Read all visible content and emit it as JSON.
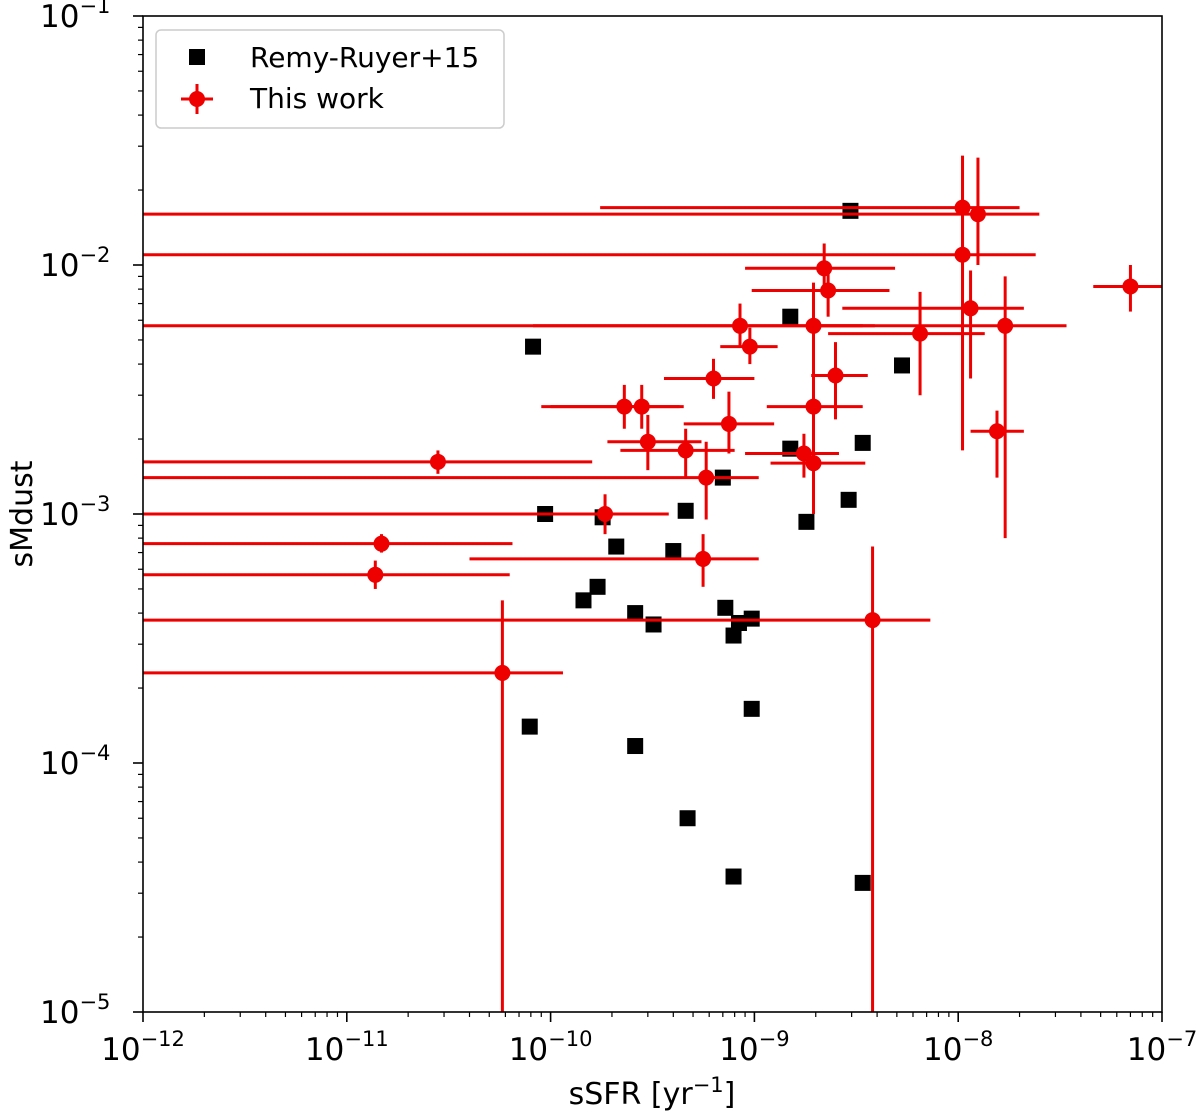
{
  "chart_data": {
    "type": "scatter",
    "xlabel": "sSFR [yr",
    "xlabel_sup": "−1",
    "xlabel_end": "]",
    "ylabel": "sMdust",
    "x_scale": "log",
    "y_scale": "log",
    "xlim": [
      1e-12,
      1e-07
    ],
    "ylim": [
      1e-05,
      0.1
    ],
    "x_ticks": [
      {
        "value": 1e-12,
        "base": "10",
        "exp": "−12"
      },
      {
        "value": 1e-11,
        "base": "10",
        "exp": "−11"
      },
      {
        "value": 1e-10,
        "base": "10",
        "exp": "−10"
      },
      {
        "value": 1e-09,
        "base": "10",
        "exp": "−9"
      },
      {
        "value": 1e-08,
        "base": "10",
        "exp": "−8"
      },
      {
        "value": 1e-07,
        "base": "10",
        "exp": "−7"
      }
    ],
    "y_ticks": [
      {
        "value": 1e-05,
        "base": "10",
        "exp": "−5"
      },
      {
        "value": 0.0001,
        "base": "10",
        "exp": "−4"
      },
      {
        "value": 0.001,
        "base": "10",
        "exp": "−3"
      },
      {
        "value": 0.01,
        "base": "10",
        "exp": "−2"
      },
      {
        "value": 0.1,
        "base": "10",
        "exp": "−1"
      }
    ],
    "grid": false,
    "legend_position": "top-left",
    "series": [
      {
        "name": "Remy-Ruyer+15",
        "marker": "square",
        "color": "#000000",
        "points": [
          [
            2.96e-09,
            0.0165
          ],
          [
            1.5e-09,
            0.0062
          ],
          [
            8.2e-11,
            0.0047
          ],
          [
            5.3e-09,
            0.00395
          ],
          [
            3.4e-09,
            0.00193
          ],
          [
            1.5e-09,
            0.00183
          ],
          [
            7e-10,
            0.0014
          ],
          [
            2.9e-09,
            0.00114
          ],
          [
            9.4e-11,
            0.001
          ],
          [
            1.8e-10,
            0.00097
          ],
          [
            4.6e-10,
            0.00103
          ],
          [
            1.8e-09,
            0.00093
          ],
          [
            2.1e-10,
            0.00074
          ],
          [
            4e-10,
            0.00071
          ],
          [
            1.7e-10,
            0.00051
          ],
          [
            1.45e-10,
            0.00045
          ],
          [
            2.6e-10,
            0.0004
          ],
          [
            7.2e-10,
            0.00042
          ],
          [
            3.2e-10,
            0.00036
          ],
          [
            8.4e-10,
            0.000365
          ],
          [
            9.7e-10,
            0.00038
          ],
          [
            7.9e-10,
            0.000325
          ],
          [
            9.7e-10,
            0.000165
          ],
          [
            7.9e-11,
            0.00014
          ],
          [
            2.6e-10,
            0.000117
          ],
          [
            4.7e-10,
            6e-05
          ],
          [
            7.9e-10,
            3.5e-05
          ],
          [
            3.4e-09,
            3.3e-05
          ]
        ]
      },
      {
        "name": "This work",
        "marker": "circle",
        "color": "#ee0000",
        "points": [
          {
            "x": 1.05e-08,
            "y": 0.017,
            "xerr": [
              1.75e-10,
              2e-08
            ],
            "yerr": [
              0.01,
              0.0275
            ]
          },
          {
            "x": 1.25e-08,
            "y": 0.016,
            "xerr": [
              1e-12,
              2.5e-08
            ],
            "yerr": [
              0.01,
              0.027
            ]
          },
          {
            "x": 1.05e-08,
            "y": 0.011,
            "xerr": [
              1e-12,
              2.4e-08
            ],
            "yerr": [
              0.0018,
              0.02
            ]
          },
          {
            "x": 2.2e-09,
            "y": 0.0097,
            "xerr": [
              9e-10,
              4.9e-09
            ],
            "yerr": [
              0.0075,
              0.0122
            ]
          },
          {
            "x": 2.3e-09,
            "y": 0.0079,
            "xerr": [
              9.7e-10,
              4.6e-09
            ],
            "yerr": [
              0.0062,
              0.0097
            ]
          },
          {
            "x": 7e-08,
            "y": 0.0082,
            "xerr": [
              4.6e-08,
              1.05e-07
            ],
            "yerr": [
              0.0065,
              0.01
            ]
          },
          {
            "x": 1.15e-08,
            "y": 0.0067,
            "xerr": [
              2.7e-09,
              2.1e-08
            ],
            "yerr": [
              0.0035,
              0.0095
            ]
          },
          {
            "x": 8.5e-10,
            "y": 0.0057,
            "xerr": [
              1e-12,
              3.9e-09
            ],
            "yerr": [
              0.0047,
              0.007
            ]
          },
          {
            "x": 1.95e-09,
            "y": 0.0057,
            "xerr": [
              8.2e-11,
              3.4e-09
            ],
            "yerr": [
              0.002,
              0.0085
            ]
          },
          {
            "x": 1.7e-08,
            "y": 0.0057,
            "xerr": [
              2e-09,
              3.4e-08
            ],
            "yerr": [
              0.0008,
              0.009
            ]
          },
          {
            "x": 6.5e-09,
            "y": 0.0053,
            "xerr": [
              2.3e-09,
              1.35e-08
            ],
            "yerr": [
              0.003,
              0.0078
            ]
          },
          {
            "x": 9.5e-10,
            "y": 0.0047,
            "xerr": [
              6.8e-10,
              1.3e-09
            ],
            "yerr": [
              0.004,
              0.0056
            ]
          },
          {
            "x": 6.3e-10,
            "y": 0.0035,
            "xerr": [
              3.6e-10,
              1e-09
            ],
            "yerr": [
              0.0029,
              0.0042
            ]
          },
          {
            "x": 2.5e-09,
            "y": 0.0036,
            "xerr": [
              1.9e-09,
              3.6e-09
            ],
            "yerr": [
              0.0024,
              0.0049
            ]
          },
          {
            "x": 2.3e-10,
            "y": 0.0027,
            "xerr": [
              9e-11,
              4.5e-10
            ],
            "yerr": [
              0.0022,
              0.0033
            ]
          },
          {
            "x": 2.8e-10,
            "y": 0.0027,
            "xerr": [
              1e-10,
              4.3e-10
            ],
            "yerr": [
              0.0022,
              0.0033
            ]
          },
          {
            "x": 1.95e-09,
            "y": 0.0027,
            "xerr": [
              1.15e-09,
              3.4e-09
            ],
            "yerr": [
              0.002,
              0.0035
            ]
          },
          {
            "x": 7.5e-10,
            "y": 0.0023,
            "xerr": [
              4.5e-10,
              1.25e-09
            ],
            "yerr": [
              0.00175,
              0.0031
            ]
          },
          {
            "x": 1.55e-08,
            "y": 0.00215,
            "xerr": [
              1.15e-08,
              2.1e-08
            ],
            "yerr": [
              0.0014,
              0.0026
            ]
          },
          {
            "x": 3e-10,
            "y": 0.00195,
            "xerr": [
              1.9e-10,
              5.5e-10
            ],
            "yerr": [
              0.0015,
              0.0025
            ]
          },
          {
            "x": 4.6e-10,
            "y": 0.0018,
            "xerr": [
              2.2e-10,
              8e-10
            ],
            "yerr": [
              0.0014,
              0.0022
            ]
          },
          {
            "x": 1.75e-09,
            "y": 0.00175,
            "xerr": [
              9e-10,
              2.6e-09
            ],
            "yerr": [
              0.0014,
              0.0021
            ]
          },
          {
            "x": 1.95e-09,
            "y": 0.0016,
            "xerr": [
              1.2e-09,
              3.5e-09
            ],
            "yerr": [
              0.001,
              0.002
            ]
          },
          {
            "x": 2.8e-11,
            "y": 0.00162,
            "xerr": [
              1e-12,
              1.6e-10
            ],
            "yerr": [
              0.00145,
              0.0018
            ]
          },
          {
            "x": 5.8e-10,
            "y": 0.0014,
            "xerr": [
              1e-12,
              1.05e-09
            ],
            "yerr": [
              0.00095,
              0.00195
            ]
          },
          {
            "x": 1.85e-10,
            "y": 0.001,
            "xerr": [
              1e-12,
              3.8e-10
            ],
            "yerr": [
              0.00083,
              0.0012
            ]
          },
          {
            "x": 1.48e-11,
            "y": 0.00076,
            "xerr": [
              1e-12,
              6.5e-11
            ],
            "yerr": [
              0.0007,
              0.00083
            ]
          },
          {
            "x": 5.6e-10,
            "y": 0.00066,
            "xerr": [
              4e-11,
              1.05e-09
            ],
            "yerr": [
              0.00051,
              0.00083
            ]
          },
          {
            "x": 1.38e-11,
            "y": 0.00057,
            "xerr": [
              1e-12,
              6.3e-11
            ],
            "yerr": [
              0.0005,
              0.00065
            ]
          },
          {
            "x": 3.8e-09,
            "y": 0.000375,
            "xerr": [
              1e-12,
              7.3e-09
            ],
            "yerr": [
              1e-05,
              0.00074
            ]
          },
          {
            "x": 5.8e-11,
            "y": 0.00023,
            "xerr": [
              1e-12,
              1.15e-10
            ],
            "yerr": [
              1e-05,
              0.00045
            ]
          }
        ]
      }
    ]
  }
}
